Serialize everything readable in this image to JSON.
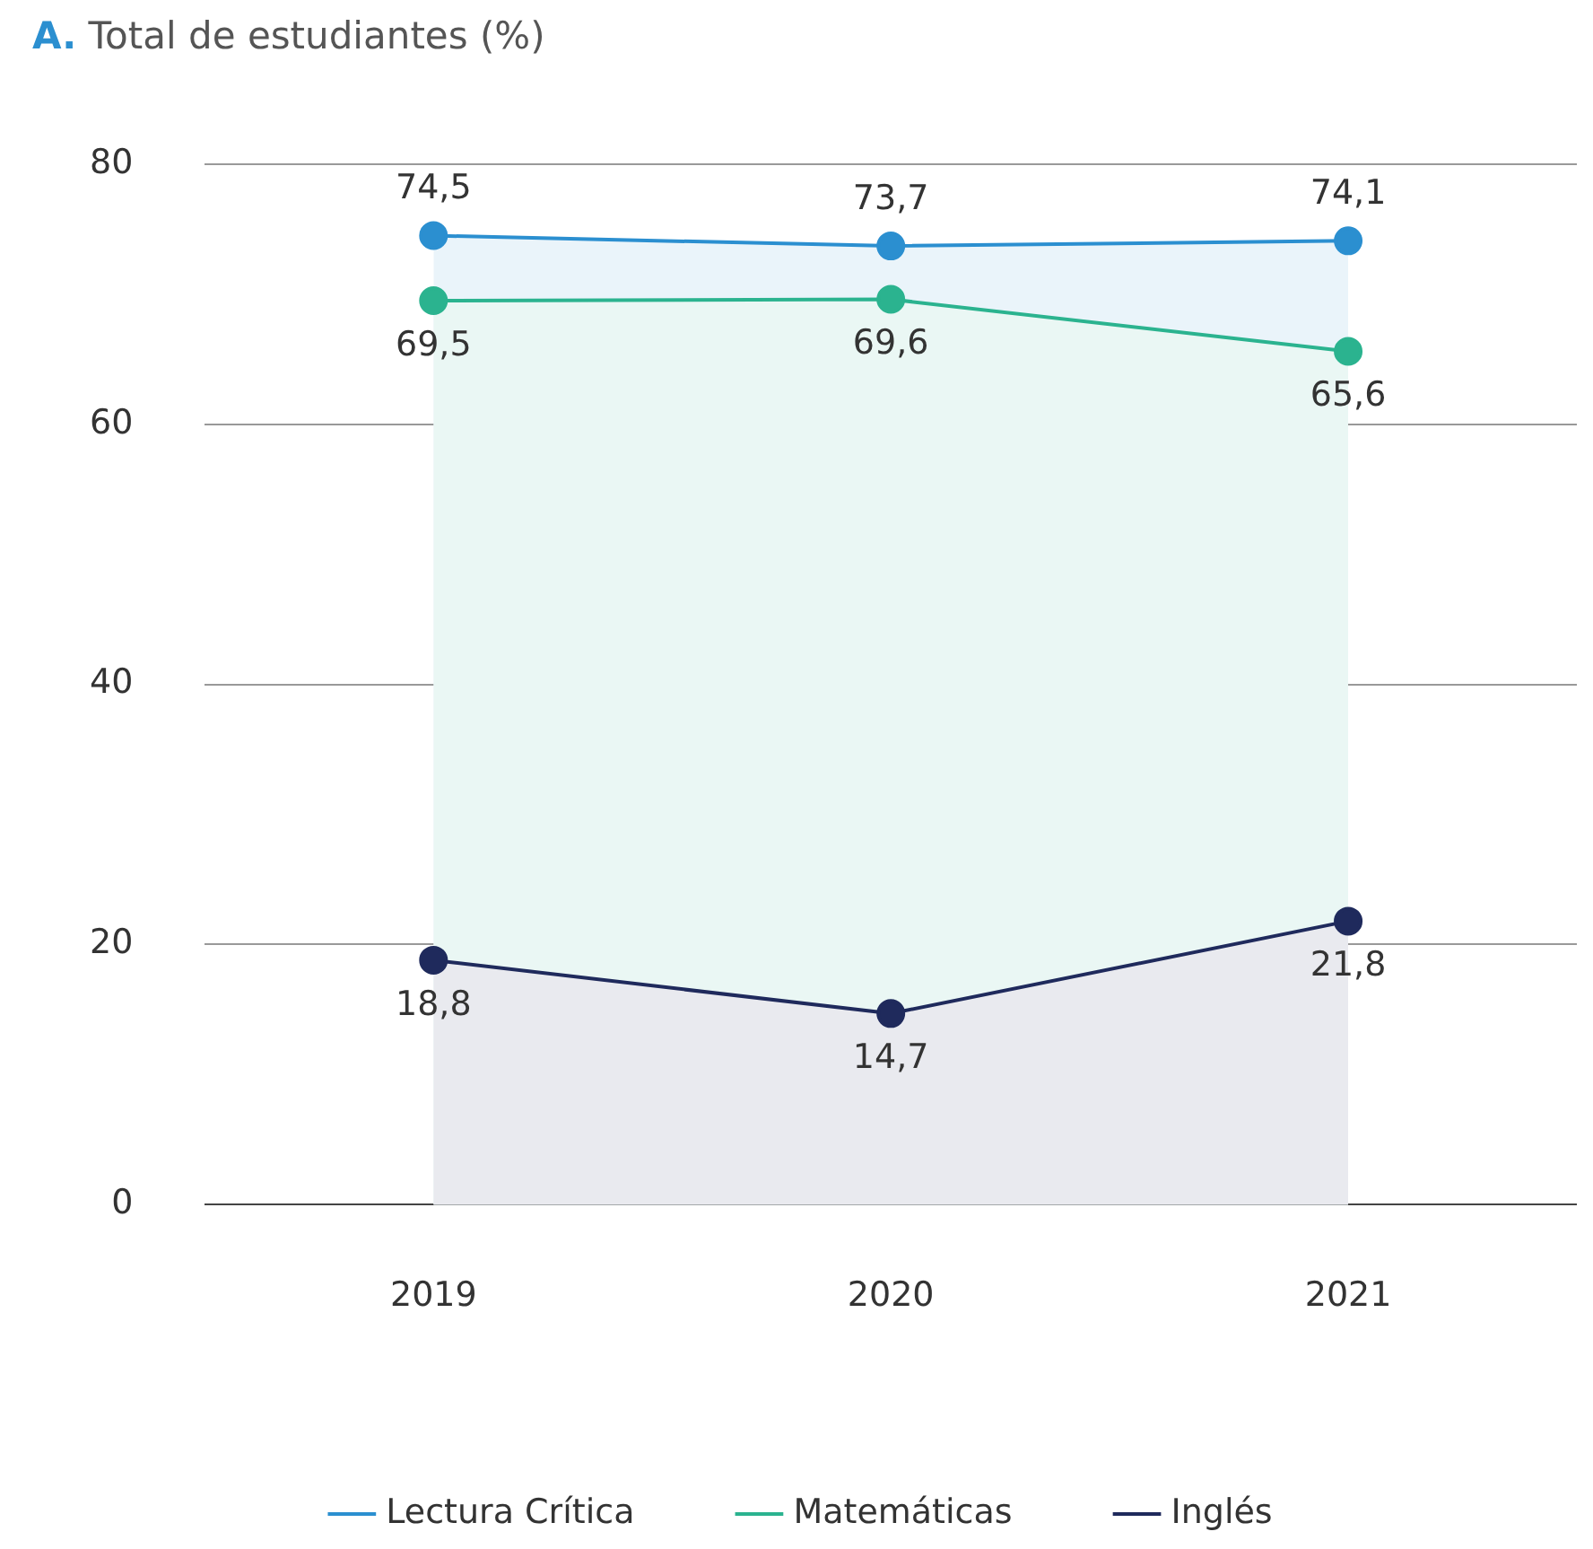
{
  "chart_data": {
    "type": "area",
    "title": "A. Total de estudiantes (%)",
    "categories": [
      "2019",
      "2020",
      "2021"
    ],
    "series": [
      {
        "name": "Lectura Crítica",
        "color": "#2b8fd0",
        "values": [
          74.5,
          73.7,
          74.1
        ],
        "value_labels": [
          "74,5",
          "73,7",
          "74,1"
        ]
      },
      {
        "name": "Matemáticas",
        "color": "#2bb38f",
        "values": [
          69.5,
          69.6,
          65.6
        ],
        "value_labels": [
          "69,5",
          "69,6",
          "65,6"
        ]
      },
      {
        "name": "Inglés",
        "color": "#1f2a5c",
        "values": [
          18.8,
          14.7,
          21.8
        ],
        "value_labels": [
          "18,8",
          "14,7",
          "21,8"
        ]
      }
    ],
    "ylim": [
      0,
      80
    ],
    "yticks": [
      0,
      20,
      40,
      60,
      80
    ],
    "grid": "y",
    "legend": "bottom",
    "marker": "circle",
    "line_style": "solid"
  }
}
